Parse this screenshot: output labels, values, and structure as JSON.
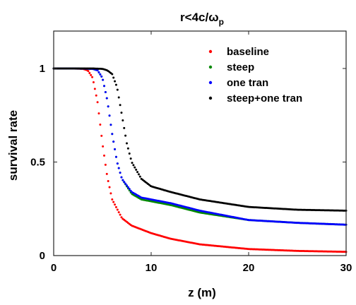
{
  "chart_data": {
    "type": "scatter",
    "title": "r<4c/ω",
    "title_subscript": "p",
    "xlabel": "z (m)",
    "ylabel": "survival rate",
    "xlim": [
      0,
      30
    ],
    "ylim": [
      0,
      1.2
    ],
    "xticks": [
      0,
      10,
      20,
      30
    ],
    "xtick_labels": [
      "0",
      "10",
      "20",
      "30"
    ],
    "yticks": [
      0,
      0.5,
      1
    ],
    "ytick_labels": [
      "0",
      "0.5",
      "1"
    ],
    "grid": false,
    "legend_position": "top-right",
    "series": [
      {
        "name": "baseline",
        "color": "#ff0000",
        "points": [
          [
            0,
            1.0
          ],
          [
            1,
            1.0
          ],
          [
            2,
            1.0
          ],
          [
            3,
            0.998
          ],
          [
            3.5,
            0.99
          ],
          [
            4,
            0.95
          ],
          [
            4.5,
            0.82
          ],
          [
            5,
            0.6
          ],
          [
            5.5,
            0.42
          ],
          [
            6,
            0.3
          ],
          [
            7,
            0.2
          ],
          [
            8,
            0.16
          ],
          [
            10,
            0.12
          ],
          [
            12,
            0.09
          ],
          [
            15,
            0.06
          ],
          [
            18,
            0.045
          ],
          [
            20,
            0.035
          ],
          [
            25,
            0.025
          ],
          [
            30,
            0.02
          ]
        ]
      },
      {
        "name": "steep",
        "color": "#008800",
        "points": [
          [
            0,
            1.0
          ],
          [
            2,
            1.0
          ],
          [
            4,
            0.998
          ],
          [
            4.5,
            0.99
          ],
          [
            5,
            0.95
          ],
          [
            5.5,
            0.83
          ],
          [
            6,
            0.65
          ],
          [
            6.5,
            0.5
          ],
          [
            7,
            0.41
          ],
          [
            8,
            0.33
          ],
          [
            9,
            0.3
          ],
          [
            10,
            0.29
          ],
          [
            12,
            0.27
          ],
          [
            15,
            0.23
          ],
          [
            20,
            0.19
          ],
          [
            25,
            0.175
          ],
          [
            30,
            0.165
          ]
        ]
      },
      {
        "name": "one tran",
        "color": "#0000ff",
        "points": [
          [
            0,
            1.0
          ],
          [
            2,
            1.0
          ],
          [
            4,
            0.998
          ],
          [
            4.5,
            0.99
          ],
          [
            5,
            0.95
          ],
          [
            5.5,
            0.83
          ],
          [
            6,
            0.65
          ],
          [
            6.5,
            0.5
          ],
          [
            7,
            0.41
          ],
          [
            8,
            0.34
          ],
          [
            9,
            0.31
          ],
          [
            10,
            0.3
          ],
          [
            12,
            0.28
          ],
          [
            15,
            0.24
          ],
          [
            20,
            0.19
          ],
          [
            25,
            0.175
          ],
          [
            30,
            0.165
          ]
        ]
      },
      {
        "name": "steep+one tran",
        "color": "#000000",
        "points": [
          [
            0,
            1.0
          ],
          [
            2,
            1.0
          ],
          [
            4,
            1.0
          ],
          [
            5,
            0.998
          ],
          [
            5.5,
            0.99
          ],
          [
            6,
            0.97
          ],
          [
            6.5,
            0.9
          ],
          [
            7,
            0.75
          ],
          [
            7.5,
            0.6
          ],
          [
            8,
            0.5
          ],
          [
            9,
            0.41
          ],
          [
            10,
            0.37
          ],
          [
            12,
            0.34
          ],
          [
            15,
            0.3
          ],
          [
            20,
            0.26
          ],
          [
            25,
            0.245
          ],
          [
            30,
            0.24
          ]
        ]
      }
    ]
  }
}
